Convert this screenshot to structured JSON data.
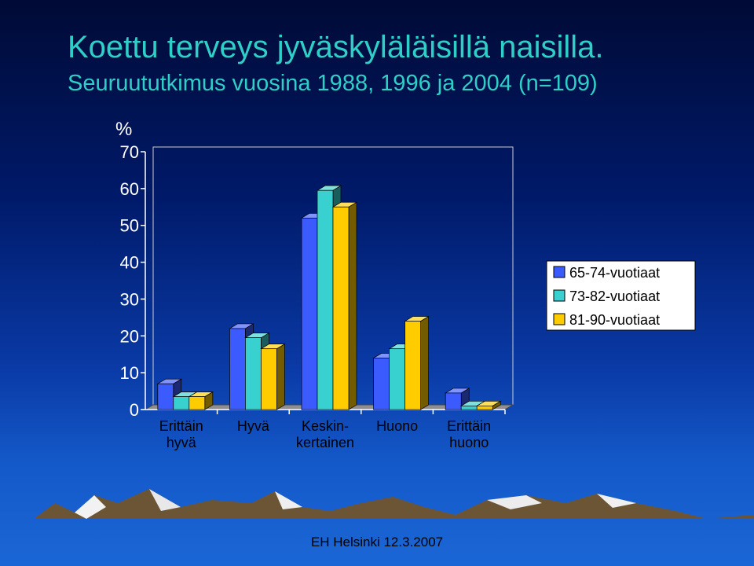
{
  "slide": {
    "title": "Koettu terveys jyväskyläläisillä naisilla.",
    "subtitle": "Seuruututkimus vuosina 1988, 1996 ja 2004 (n=109)",
    "footer": "EH Helsinki 12.3.2007"
  },
  "chart_data": {
    "type": "bar",
    "ylabel": "%",
    "ylim": [
      0,
      70
    ],
    "yticks": [
      0,
      10,
      20,
      30,
      40,
      50,
      60,
      70
    ],
    "categories": [
      [
        "Erittäin",
        "hyvä"
      ],
      [
        "Hyvä"
      ],
      [
        "Keskin-",
        "kertainen"
      ],
      [
        "Huono"
      ],
      [
        "Erittäin",
        "huono"
      ]
    ],
    "series": [
      {
        "name": "65-74-vuotiaat",
        "color": "#3b5bff",
        "values": [
          7,
          22,
          52,
          14,
          4.5
        ]
      },
      {
        "name": "73-82-vuotiaat",
        "color": "#38d1cf",
        "values": [
          3.5,
          19.5,
          59.5,
          16.5,
          1
        ]
      },
      {
        "name": "81-90-vuotiaat",
        "color": "#ffcc00",
        "values": [
          3.5,
          16.5,
          55,
          24,
          1
        ]
      }
    ],
    "legend_position": "right",
    "grid": false
  }
}
